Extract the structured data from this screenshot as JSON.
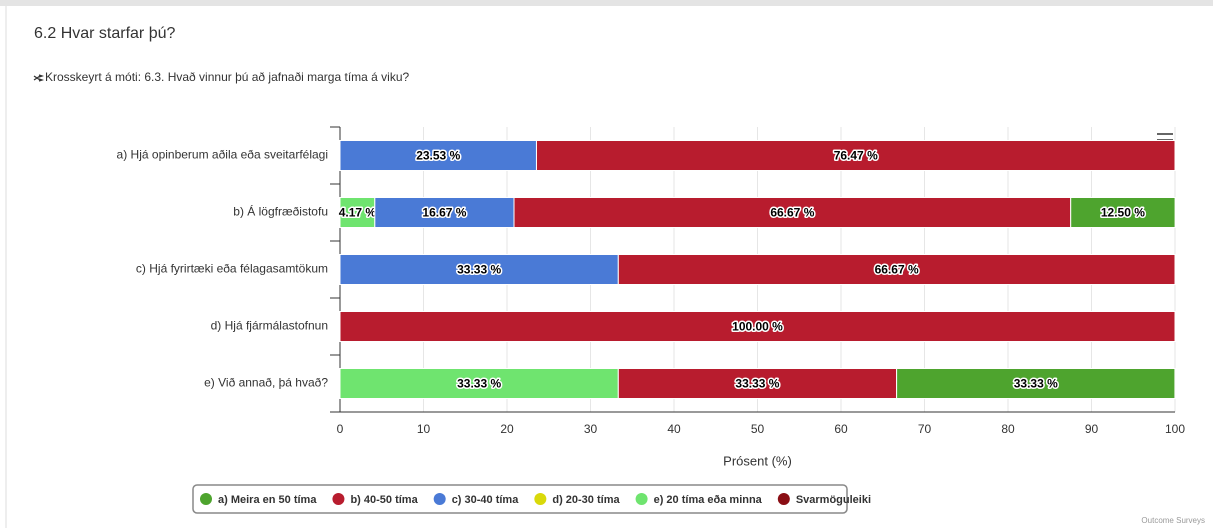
{
  "page_title": "6.2 Hvar starfar þú?",
  "subtitle": "Krosskeyrt á móti: 6.3. Hvað vinnur þú að jafnaði marga tíma á viku?",
  "credit": "Outcome Surveys",
  "chart_data": {
    "type": "stacked_bar_horizontal",
    "x_label": "Prósent (%)",
    "categories": [
      "a) Hjá opinberum aðila eða sveitarfélagi",
      "b) Á lögfræðistofu",
      "c) Hjá fyrirtæki eða félagasamtökum",
      "d) Hjá fjármálastofnun",
      "e) Við annað, þá hvað?"
    ],
    "series": [
      {
        "name": "a) Meira en 50 tíma",
        "color": "#4ea42e",
        "values": [
          null,
          12.5,
          null,
          null,
          33.33
        ],
        "value_labels": [
          null,
          "12.50 %",
          null,
          null,
          "33.33 %"
        ]
      },
      {
        "name": "b) 40-50 tíma",
        "color": "#b81c2e",
        "values": [
          76.47,
          66.67,
          66.67,
          100,
          33.33
        ],
        "value_labels": [
          "76.47 %",
          "66.67 %",
          "66.67 %",
          "100.00 %",
          "33.33 %"
        ]
      },
      {
        "name": "c) 30-40 tíma",
        "color": "#4a7ad6",
        "values": [
          23.53,
          16.67,
          33.33,
          null,
          null
        ],
        "value_labels": [
          "23.53 %",
          "16.67 %",
          "33.33 %",
          null,
          null
        ]
      },
      {
        "name": "d) 20-30 tíma",
        "color": "#d9d90a",
        "values": [
          null,
          null,
          null,
          null,
          null
        ],
        "value_labels": [
          null,
          null,
          null,
          null,
          null
        ]
      },
      {
        "name": "e) 20 tíma eða minna",
        "color": "#6fe46f",
        "values": [
          null,
          4.17,
          null,
          null,
          33.33
        ],
        "value_labels": [
          null,
          "4.17 %",
          null,
          null,
          "33.33 %"
        ]
      },
      {
        "name": "Svarmöguleiki",
        "color": "#8a0e14",
        "values": [
          null,
          null,
          null,
          null,
          null
        ],
        "value_labels": [
          null,
          null,
          null,
          null,
          null
        ]
      }
    ],
    "xlim": [
      0,
      100
    ],
    "xticks": [
      0,
      10,
      20,
      30,
      40,
      50,
      60,
      70,
      80,
      90,
      100
    ],
    "grid": true,
    "legend": "bottom"
  }
}
